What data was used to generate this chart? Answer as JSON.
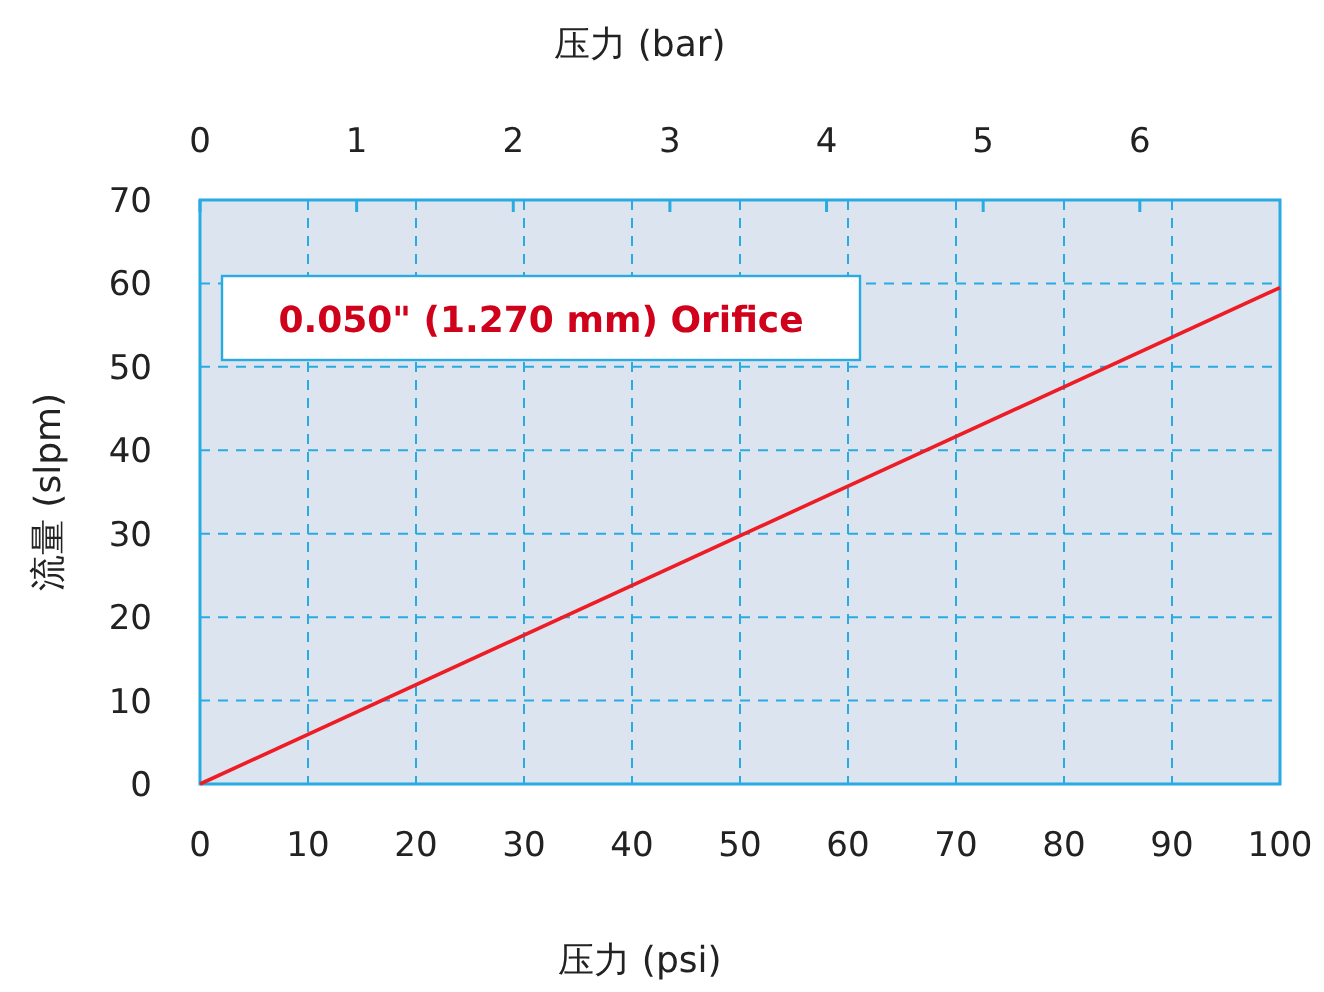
{
  "chart_data": {
    "type": "line",
    "xlabel": "压力 (psi)",
    "ylabel": "流量 (slpm)",
    "x2label": "压力 (bar)",
    "x": [
      0,
      100
    ],
    "series": [
      {
        "color": "#ee1c24",
        "values": [
          0,
          59.5
        ]
      }
    ],
    "xlim": [
      0,
      100
    ],
    "xticks": [
      0,
      10,
      20,
      30,
      40,
      50,
      60,
      70,
      80,
      90,
      100
    ],
    "ylim": [
      0,
      70
    ],
    "yticks": [
      0,
      10,
      20,
      30,
      40,
      50,
      60,
      70
    ],
    "x2lim": [
      0,
      6.895
    ],
    "x2ticks": [
      0,
      1,
      2,
      3,
      4,
      5,
      6
    ],
    "grid": true,
    "marker": "none",
    "line_style": "solid",
    "annotations": [
      "0.050\" (1.270 mm) Orifice"
    ]
  }
}
